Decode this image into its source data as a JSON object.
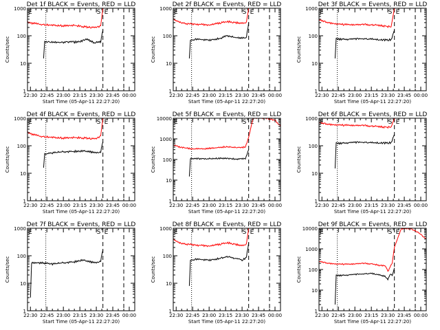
{
  "figure": {
    "time_ticks": [
      "22:30",
      "22:45",
      "23:00",
      "23:15",
      "23:30",
      "23:45",
      "00:00"
    ],
    "xlabel": "Start Time (05-Apr-11 22:27:20)",
    "ylabel": "Counts/sec",
    "y_ticks": [
      "1",
      "10",
      "100",
      "1000",
      "10000"
    ],
    "marker_labels": {
      "start": "E",
      "mid": "S",
      "end": "E"
    },
    "colors": {
      "events": "#000000",
      "lld": "#ff0000",
      "axes": "#000000",
      "background": "#ffffff"
    }
  },
  "chart_data": [
    {
      "type": "line",
      "title": "Det 1f BLACK = Events, RED = LLD",
      "xlabel": "Start Time (05-Apr-11 22:27:20)",
      "ylabel": "Counts/sec",
      "x_range": [
        "22:27:20",
        "00:05"
      ],
      "y_scale": "log",
      "ylim": [
        1,
        1000
      ],
      "y_ticks": [
        "1",
        "10",
        "100",
        "1000"
      ],
      "markers": {
        "dotted": "22:44",
        "dashed_1": "23:36",
        "dashed_2": "23:55"
      },
      "series": [
        {
          "color": "#000000",
          "points": [
            [
              "22:42",
              15
            ],
            [
              "22:43",
              60
            ],
            [
              "22:48",
              62
            ],
            [
              "22:55",
              55
            ],
            [
              "23:03",
              60
            ],
            [
              "23:10",
              58
            ],
            [
              "23:17",
              65
            ],
            [
              "23:22",
              75
            ],
            [
              "23:28",
              55
            ],
            [
              "23:34",
              60
            ],
            [
              "23:36",
              160
            ]
          ]
        },
        {
          "color": "#ff0000",
          "points": [
            [
              "22:27",
              300
            ],
            [
              "22:33",
              280
            ],
            [
              "22:40",
              260
            ],
            [
              "22:50",
              240
            ],
            [
              "23:00",
              230
            ],
            [
              "23:10",
              240
            ],
            [
              "23:20",
              210
            ],
            [
              "23:30",
              200
            ],
            [
              "23:34",
              230
            ],
            [
              "23:36",
              1000
            ]
          ]
        }
      ]
    },
    {
      "type": "line",
      "title": "Det 2f BLACK = Events, RED = LLD",
      "xlabel": "Start Time (05-Apr-11 22:27:20)",
      "ylabel": "Counts/sec",
      "x_range": [
        "22:27:20",
        "00:05"
      ],
      "y_scale": "log",
      "ylim": [
        1,
        1000
      ],
      "y_ticks": [
        "1",
        "10",
        "100",
        "1000"
      ],
      "markers": {
        "dotted": "22:44",
        "dashed_1": "23:36",
        "dashed_2": "23:55"
      },
      "series": [
        {
          "color": "#000000",
          "points": [
            [
              "22:42",
              15
            ],
            [
              "22:43",
              70
            ],
            [
              "22:50",
              75
            ],
            [
              "23:00",
              70
            ],
            [
              "23:10",
              80
            ],
            [
              "23:16",
              100
            ],
            [
              "23:22",
              90
            ],
            [
              "23:28",
              80
            ],
            [
              "23:34",
              85
            ],
            [
              "23:36",
              300
            ]
          ]
        },
        {
          "color": "#ff0000",
          "points": [
            [
              "22:27",
              400
            ],
            [
              "22:33",
              320
            ],
            [
              "22:40",
              270
            ],
            [
              "22:50",
              260
            ],
            [
              "23:00",
              250
            ],
            [
              "23:10",
              290
            ],
            [
              "23:17",
              330
            ],
            [
              "23:24",
              300
            ],
            [
              "23:30",
              280
            ],
            [
              "23:34",
              300
            ],
            [
              "23:36",
              1000
            ]
          ]
        }
      ]
    },
    {
      "type": "line",
      "title": "Det 3f BLACK = Events, RED = LLD",
      "xlabel": "Start Time (05-Apr-11 22:27:20)",
      "ylabel": "Counts/sec",
      "x_range": [
        "22:27:20",
        "00:05"
      ],
      "y_scale": "log",
      "ylim": [
        1,
        1000
      ],
      "y_ticks": [
        "1",
        "10",
        "100",
        "1000"
      ],
      "markers": {
        "dotted": "22:44",
        "dashed_1": "23:36",
        "dashed_2": "23:55"
      },
      "series": [
        {
          "color": "#000000",
          "points": [
            [
              "22:42",
              15
            ],
            [
              "22:43",
              75
            ],
            [
              "22:55",
              75
            ],
            [
              "23:05",
              78
            ],
            [
              "23:15",
              76
            ],
            [
              "23:25",
              70
            ],
            [
              "23:33",
              72
            ],
            [
              "23:36",
              160
            ]
          ]
        },
        {
          "color": "#ff0000",
          "points": [
            [
              "22:27",
              380
            ],
            [
              "22:35",
              300
            ],
            [
              "22:45",
              260
            ],
            [
              "22:55",
              250
            ],
            [
              "23:05",
              260
            ],
            [
              "23:15",
              250
            ],
            [
              "23:25",
              230
            ],
            [
              "23:33",
              210
            ],
            [
              "23:36",
              1000
            ]
          ]
        }
      ]
    },
    {
      "type": "line",
      "title": "Det 4f BLACK = Events, RED = LLD",
      "xlabel": "Start Time (05-Apr-11 22:27:20)",
      "ylabel": "Counts/sec",
      "x_range": [
        "22:27:20",
        "00:05"
      ],
      "y_scale": "log",
      "ylim": [
        1,
        1000
      ],
      "y_ticks": [
        "1",
        "10",
        "100",
        "1000"
      ],
      "markers": {
        "dotted": "22:44",
        "dashed_1": "23:36",
        "dashed_2": "23:55"
      },
      "series": [
        {
          "color": "#000000",
          "points": [
            [
              "22:42",
              15
            ],
            [
              "22:43",
              50
            ],
            [
              "22:50",
              55
            ],
            [
              "23:00",
              60
            ],
            [
              "23:10",
              62
            ],
            [
              "23:17",
              65
            ],
            [
              "23:24",
              60
            ],
            [
              "23:30",
              55
            ],
            [
              "23:34",
              60
            ],
            [
              "23:36",
              140
            ]
          ]
        },
        {
          "color": "#ff0000",
          "points": [
            [
              "22:27",
              300
            ],
            [
              "22:33",
              250
            ],
            [
              "22:40",
              220
            ],
            [
              "22:50",
              200
            ],
            [
              "23:00",
              190
            ],
            [
              "23:10",
              200
            ],
            [
              "23:20",
              190
            ],
            [
              "23:30",
              180
            ],
            [
              "23:34",
              230
            ],
            [
              "23:36",
              1000
            ]
          ]
        }
      ]
    },
    {
      "type": "line",
      "title": "Det 5f BLACK = Events, RED = LLD",
      "xlabel": "Start Time (05-Apr-11 22:27:20)",
      "ylabel": "Counts/sec",
      "x_range": [
        "22:27:20",
        "00:05"
      ],
      "y_scale": "log",
      "ylim": [
        1,
        10000
      ],
      "y_ticks": [
        "1",
        "10",
        "100",
        "1000",
        "10000"
      ],
      "markers": {
        "dotted": "22:44",
        "dashed_1": "23:36",
        "dashed_2": "23:55"
      },
      "series": [
        {
          "color": "#000000",
          "points": [
            [
              "22:42",
              15
            ],
            [
              "22:43",
              110
            ],
            [
              "22:55",
              110
            ],
            [
              "23:05",
              110
            ],
            [
              "23:15",
              115
            ],
            [
              "23:25",
              105
            ],
            [
              "23:33",
              110
            ],
            [
              "23:36",
              300
            ]
          ]
        },
        {
          "color": "#ff0000",
          "points": [
            [
              "22:27",
              500
            ],
            [
              "22:35",
              380
            ],
            [
              "22:45",
              330
            ],
            [
              "22:55",
              330
            ],
            [
              "23:05",
              360
            ],
            [
              "23:15",
              420
            ],
            [
              "23:25",
              380
            ],
            [
              "23:33",
              400
            ],
            [
              "23:36",
              1200
            ],
            [
              "23:40",
              10000
            ],
            [
              "23:52",
              10000
            ],
            [
              "00:00",
              8000
            ],
            [
              "00:05",
              4000
            ]
          ]
        }
      ]
    },
    {
      "type": "line",
      "title": "Det 6f BLACK = Events, RED = LLD",
      "xlabel": "Start Time (05-Apr-11 22:27:20)",
      "ylabel": "Counts/sec",
      "x_range": [
        "22:27:20",
        "00:05"
      ],
      "y_scale": "log",
      "ylim": [
        1,
        1000
      ],
      "y_ticks": [
        "1",
        "10",
        "100",
        "1000"
      ],
      "markers": {
        "dotted": "22:44",
        "dashed_1": "23:36",
        "dashed_2": "23:55"
      },
      "series": [
        {
          "color": "#000000",
          "points": [
            [
              "22:42",
              15
            ],
            [
              "22:43",
              120
            ],
            [
              "22:55",
              130
            ],
            [
              "23:05",
              135
            ],
            [
              "23:15",
              130
            ],
            [
              "23:25",
              125
            ],
            [
              "23:33",
              130
            ],
            [
              "23:36",
              260
            ]
          ]
        },
        {
          "color": "#ff0000",
          "points": [
            [
              "22:27",
              700
            ],
            [
              "22:35",
              600
            ],
            [
              "22:45",
              560
            ],
            [
              "22:55",
              550
            ],
            [
              "23:05",
              560
            ],
            [
              "23:15",
              520
            ],
            [
              "23:25",
              480
            ],
            [
              "23:33",
              470
            ],
            [
              "23:36",
              1000
            ]
          ]
        }
      ]
    },
    {
      "type": "line",
      "title": "Det 7f BLACK = Events, RED = LLD",
      "xlabel": "Start Time (05-Apr-11 22:27:20)",
      "ylabel": "Counts/sec",
      "x_range": [
        "22:27:20",
        "00:05"
      ],
      "y_scale": "log",
      "ylim": [
        1,
        1000
      ],
      "y_ticks": [
        "1",
        "10",
        "100",
        "1000"
      ],
      "markers": {
        "dotted": "22:44",
        "dashed_1": "23:36",
        "dashed_2": "23:55"
      },
      "series": [
        {
          "color": "#000000",
          "points": [
            [
              "22:30",
              3
            ],
            [
              "22:31",
              55
            ],
            [
              "22:40",
              55
            ],
            [
              "22:50",
              50
            ],
            [
              "23:00",
              55
            ],
            [
              "23:10",
              60
            ],
            [
              "23:17",
              70
            ],
            [
              "23:24",
              60
            ],
            [
              "23:30",
              55
            ],
            [
              "23:34",
              65
            ],
            [
              "23:36",
              160
            ]
          ]
        }
      ]
    },
    {
      "type": "line",
      "title": "Det 8f BLACK = Events, RED = LLD",
      "xlabel": "Start Time (05-Apr-11 22:27:20)",
      "ylabel": "Counts/sec",
      "x_range": [
        "22:27:20",
        "00:05"
      ],
      "y_scale": "log",
      "ylim": [
        1,
        1000
      ],
      "y_ticks": [
        "1",
        "10",
        "100",
        "1000"
      ],
      "markers": {
        "dotted": "22:44",
        "dashed_1": "23:36",
        "dashed_2": "23:55"
      },
      "series": [
        {
          "color": "#000000",
          "points": [
            [
              "22:42",
              8
            ],
            [
              "22:43",
              70
            ],
            [
              "22:50",
              75
            ],
            [
              "23:00",
              70
            ],
            [
              "23:10",
              80
            ],
            [
              "23:17",
              95
            ],
            [
              "23:24",
              80
            ],
            [
              "23:30",
              70
            ],
            [
              "23:34",
              85
            ],
            [
              "23:36",
              300
            ]
          ]
        },
        {
          "color": "#ff0000",
          "points": [
            [
              "22:27",
              400
            ],
            [
              "22:33",
              300
            ],
            [
              "22:40",
              260
            ],
            [
              "22:50",
              240
            ],
            [
              "23:00",
              230
            ],
            [
              "23:10",
              260
            ],
            [
              "23:17",
              300
            ],
            [
              "23:24",
              260
            ],
            [
              "23:30",
              230
            ],
            [
              "23:34",
              260
            ],
            [
              "23:36",
              1000
            ]
          ]
        }
      ]
    },
    {
      "type": "line",
      "title": "Det 9f BLACK = Events, RED = LLD",
      "xlabel": "Start Time (05-Apr-11 22:27:20)",
      "ylabel": "Counts/sec",
      "x_range": [
        "22:27:20",
        "00:05"
      ],
      "y_scale": "log",
      "ylim": [
        1,
        10000
      ],
      "y_ticks": [
        "1",
        "10",
        "100",
        "1000",
        "10000"
      ],
      "markers": {
        "dotted": "22:44",
        "dashed_1": "23:36",
        "dashed_2": "23:55"
      },
      "series": [
        {
          "color": "#000000",
          "points": [
            [
              "22:42",
              2
            ],
            [
              "22:43",
              50
            ],
            [
              "22:55",
              55
            ],
            [
              "23:05",
              60
            ],
            [
              "23:15",
              65
            ],
            [
              "23:22",
              55
            ],
            [
              "23:28",
              45
            ],
            [
              "23:30",
              30
            ],
            [
              "23:32",
              60
            ],
            [
              "23:34",
              50
            ],
            [
              "23:36",
              120
            ]
          ]
        },
        {
          "color": "#ff0000",
          "points": [
            [
              "22:27",
              250
            ],
            [
              "22:35",
              200
            ],
            [
              "22:45",
              180
            ],
            [
              "22:55",
              180
            ],
            [
              "23:05",
              200
            ],
            [
              "23:15",
              190
            ],
            [
              "23:22",
              160
            ],
            [
              "23:28",
              150
            ],
            [
              "23:30",
              80
            ],
            [
              "23:32",
              130
            ],
            [
              "23:34",
              200
            ],
            [
              "23:36",
              1200
            ],
            [
              "23:42",
              9000
            ],
            [
              "23:50",
              10000
            ],
            [
              "23:58",
              6000
            ],
            [
              "00:05",
              3000
            ]
          ]
        }
      ]
    }
  ]
}
